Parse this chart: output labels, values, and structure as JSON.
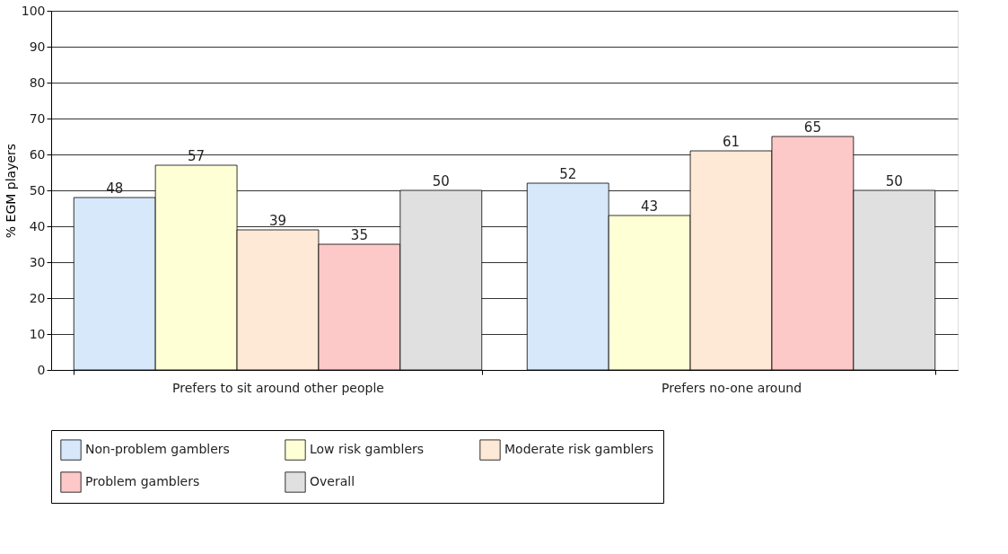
{
  "chart_data": {
    "type": "bar",
    "ylabel": "% EGM players",
    "categories": [
      "Prefers to sit around other people",
      "Prefers no-one around"
    ],
    "series": [
      {
        "name": "Non-problem gamblers",
        "color": "#d6e8fa",
        "values": [
          48,
          52
        ]
      },
      {
        "name": "Low risk gamblers",
        "color": "#ffffd6",
        "values": [
          57,
          43
        ]
      },
      {
        "name": "Moderate risk gamblers",
        "color": "#fde9d5",
        "values": [
          39,
          61
        ]
      },
      {
        "name": "Problem gamblers",
        "color": "#fcc8c8",
        "values": [
          35,
          65
        ]
      },
      {
        "name": "Overall",
        "color": "#e0e0e0",
        "values": [
          50,
          50
        ]
      }
    ],
    "ylim": [
      0,
      100
    ],
    "yticks": [
      0,
      10,
      20,
      30,
      40,
      50,
      60,
      70,
      80,
      90,
      100
    ],
    "grid": "y",
    "data_labels": true,
    "legend": "bottom"
  }
}
